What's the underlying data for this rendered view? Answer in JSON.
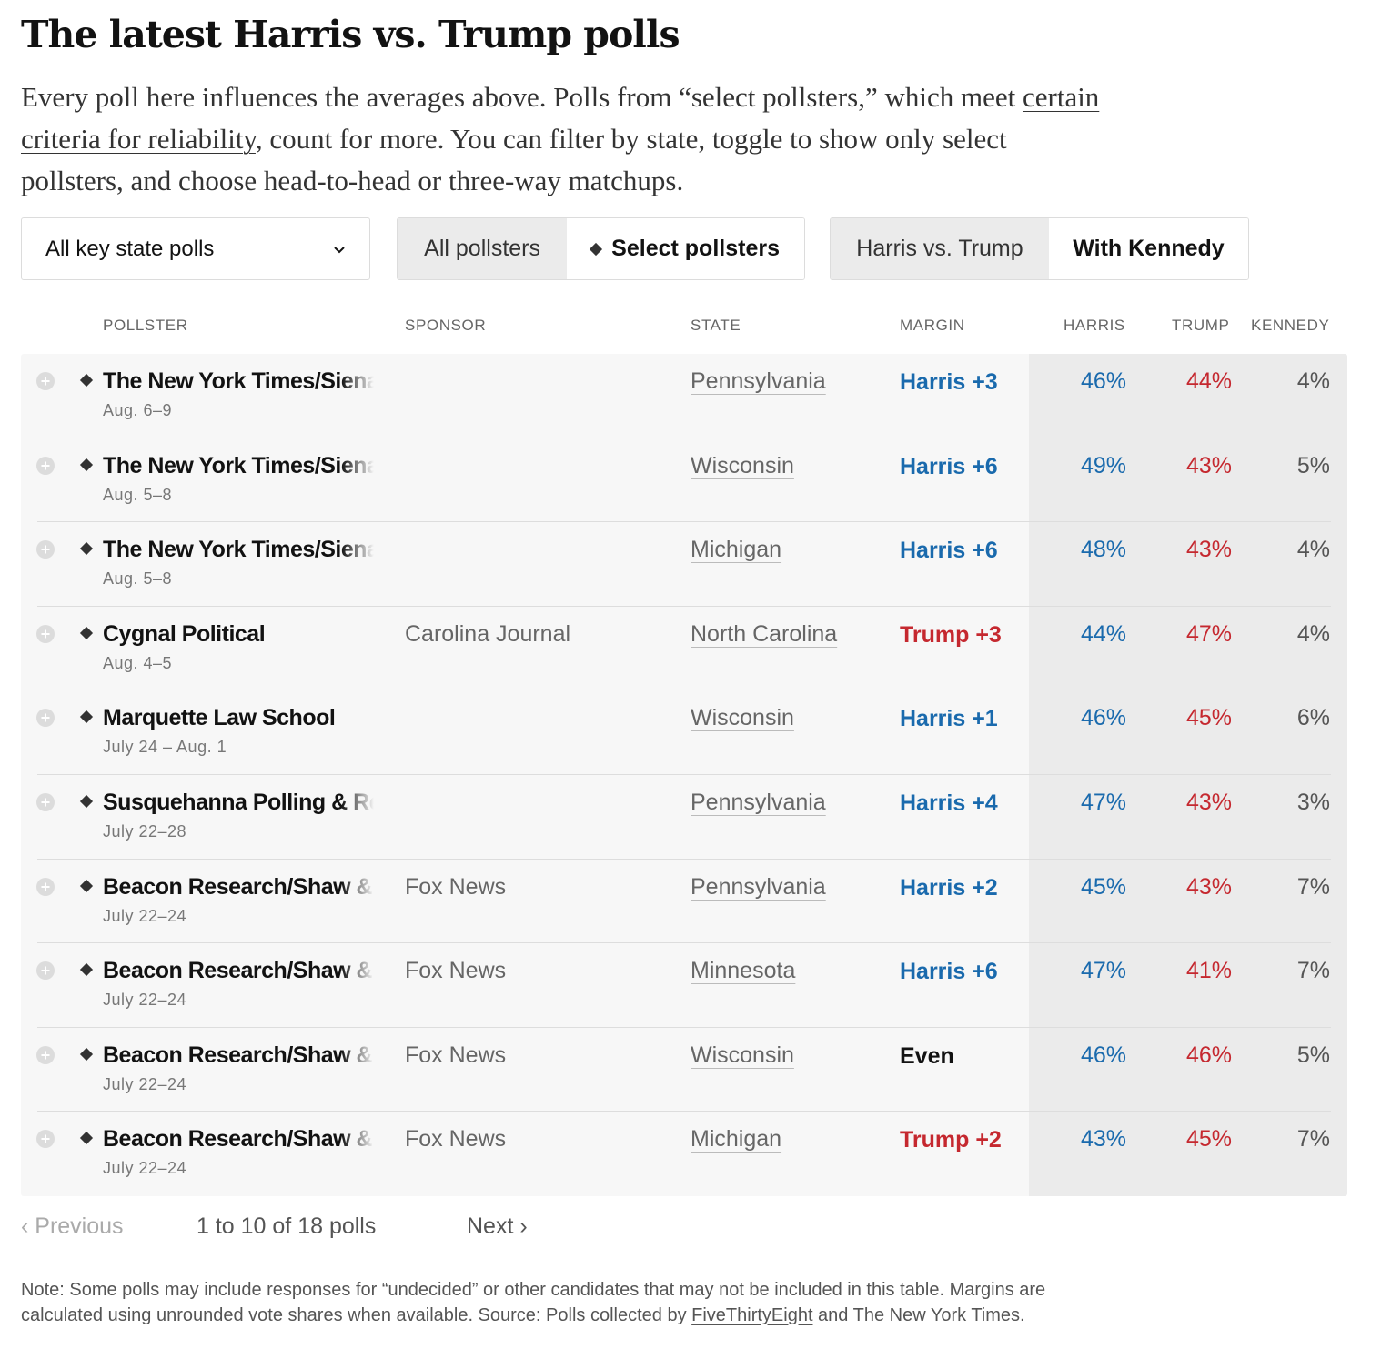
{
  "title": "The latest Harris vs. Trump polls",
  "intro": {
    "before": "Every poll here influences the averages above. Polls from “select pollsters,” which meet ",
    "link": "certain criteria for reliability",
    "after": ", count for more. You can filter by state, toggle to show only select pollsters, and choose head-to-head or three-way matchups."
  },
  "controls": {
    "state_filter": "All key state polls",
    "pollster_toggle": {
      "all": "All pollsters",
      "select": "Select pollsters",
      "active": "select"
    },
    "matchup_toggle": {
      "head_to_head": "Harris vs. Trump",
      "three_way": "With Kennedy",
      "active": "three_way"
    }
  },
  "table": {
    "headers": {
      "pollster": "POLLSTER",
      "sponsor": "SPONSOR",
      "state": "STATE",
      "margin": "MARGIN",
      "harris": "HARRIS",
      "trump": "TRUMP",
      "kennedy": "KENNEDY"
    },
    "rows": [
      {
        "pollster": "The New York Times/Siena College",
        "dates": "Aug. 6–9",
        "sponsor": "",
        "state": "Pennsylvania",
        "margin": "Harris +3",
        "leader": "harris",
        "harris": "46%",
        "trump": "44%",
        "kennedy": "4%"
      },
      {
        "pollster": "The New York Times/Siena College",
        "dates": "Aug. 5–8",
        "sponsor": "",
        "state": "Wisconsin",
        "margin": "Harris +6",
        "leader": "harris",
        "harris": "49%",
        "trump": "43%",
        "kennedy": "5%"
      },
      {
        "pollster": "The New York Times/Siena College",
        "dates": "Aug. 5–8",
        "sponsor": "",
        "state": "Michigan",
        "margin": "Harris +6",
        "leader": "harris",
        "harris": "48%",
        "trump": "43%",
        "kennedy": "4%"
      },
      {
        "pollster": "Cygnal Political",
        "dates": "Aug. 4–5",
        "sponsor": "Carolina Journal",
        "state": "North Carolina",
        "margin": "Trump +3",
        "leader": "trump",
        "harris": "44%",
        "trump": "47%",
        "kennedy": "4%"
      },
      {
        "pollster": "Marquette Law School",
        "dates": "July 24 – Aug. 1",
        "sponsor": "",
        "state": "Wisconsin",
        "margin": "Harris +1",
        "leader": "harris",
        "harris": "46%",
        "trump": "45%",
        "kennedy": "6%"
      },
      {
        "pollster": "Susquehanna Polling & Research",
        "dates": "July 22–28",
        "sponsor": "",
        "state": "Pennsylvania",
        "margin": "Harris +4",
        "leader": "harris",
        "harris": "47%",
        "trump": "43%",
        "kennedy": "3%"
      },
      {
        "pollster": "Beacon Research/Shaw & Company",
        "dates": "July 22–24",
        "sponsor": "Fox News",
        "state": "Pennsylvania",
        "margin": "Harris +2",
        "leader": "harris",
        "harris": "45%",
        "trump": "43%",
        "kennedy": "7%"
      },
      {
        "pollster": "Beacon Research/Shaw & Company",
        "dates": "July 22–24",
        "sponsor": "Fox News",
        "state": "Minnesota",
        "margin": "Harris +6",
        "leader": "harris",
        "harris": "47%",
        "trump": "41%",
        "kennedy": "7%"
      },
      {
        "pollster": "Beacon Research/Shaw & Company",
        "dates": "July 22–24",
        "sponsor": "Fox News",
        "state": "Wisconsin",
        "margin": "Even",
        "leader": "even",
        "harris": "46%",
        "trump": "46%",
        "kennedy": "5%"
      },
      {
        "pollster": "Beacon Research/Shaw & Company",
        "dates": "July 22–24",
        "sponsor": "Fox News",
        "state": "Michigan",
        "margin": "Trump +2",
        "leader": "trump",
        "harris": "43%",
        "trump": "45%",
        "kennedy": "7%"
      }
    ]
  },
  "pagination": {
    "previous": "‹ Previous",
    "count": "1 to 10 of 18 polls",
    "next": "Next ›"
  },
  "note": {
    "before": "Note: Some polls may include responses for “undecided” or other candidates that may not be included in this table. Margins are calculated using unrounded vote shares when available. Source: Polls collected by ",
    "link": "FiveThirtyEight",
    "after": " and The New York Times."
  },
  "colors": {
    "harris": "#1a6aad",
    "trump": "#c5282f",
    "even": "#121212"
  }
}
